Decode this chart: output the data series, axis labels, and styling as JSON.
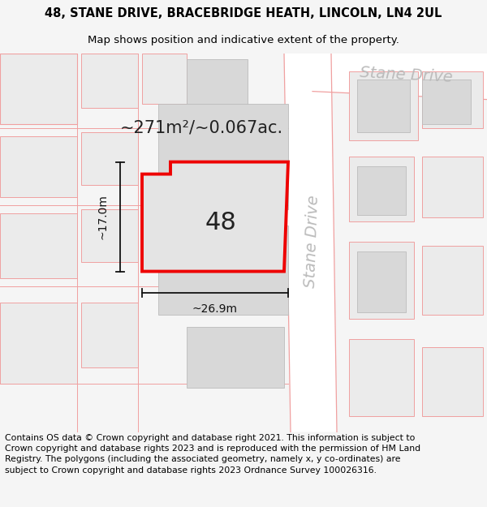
{
  "title_line1": "48, STANE DRIVE, BRACEBRIDGE HEATH, LINCOLN, LN4 2UL",
  "title_line2": "Map shows position and indicative extent of the property.",
  "footer_text": "Contains OS data © Crown copyright and database right 2021. This information is subject to Crown copyright and database rights 2023 and is reproduced with the permission of HM Land Registry. The polygons (including the associated geometry, namely x, y co-ordinates) are subject to Crown copyright and database rights 2023 Ordnance Survey 100026316.",
  "area_label": "~271m²/~0.067ac.",
  "width_label": "~26.9m",
  "height_label": "~17.0m",
  "plot_number": "48",
  "street_name_top": "Stane Drive",
  "street_name_side": "Stane Drive",
  "bg_color": "#f5f5f5",
  "map_bg": "#ffffff",
  "road_fill": "#ffffff",
  "building_fill_dark": "#d8d8d8",
  "building_fill_light": "#ebebeb",
  "plot_fill": "#e0e0e0",
  "plot_stroke": "#ee0000",
  "road_stroke": "#f0a0a0",
  "dim_color": "#111111",
  "street_color": "#bbbbbb",
  "title_fontsize": 10.5,
  "subtitle_fontsize": 9.5,
  "footer_fontsize": 7.8,
  "area_fontsize": 15,
  "number_fontsize": 22,
  "street_fontsize": 14,
  "dim_fontsize": 10
}
